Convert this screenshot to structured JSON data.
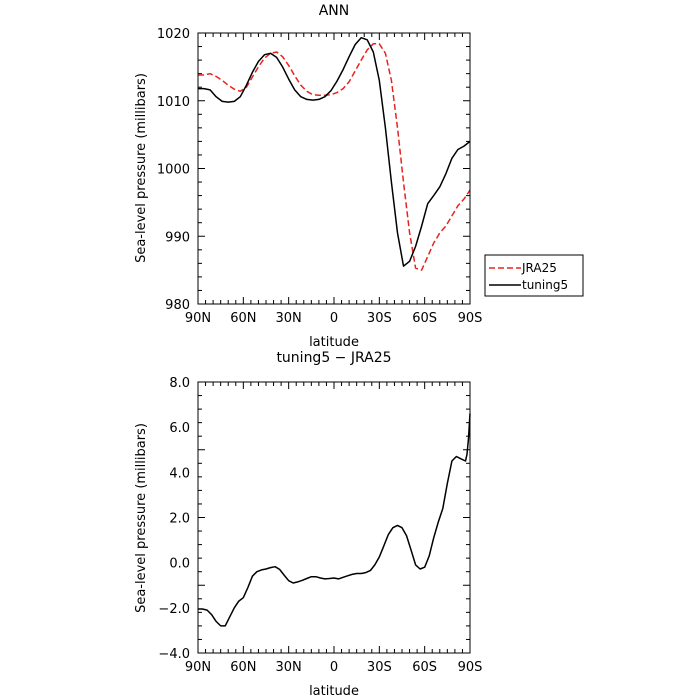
{
  "chart_data": [
    {
      "type": "line",
      "title": "ANN",
      "xlabel": "latitude",
      "ylabel": "Sea-level pressure (millibars)",
      "xlim": [
        90,
        -90
      ],
      "ylim": [
        980,
        1020
      ],
      "x_ticks": [
        90,
        60,
        30,
        0,
        -30,
        -60,
        -90
      ],
      "x_tick_labels": [
        "90N",
        "60N",
        "30N",
        "0",
        "30S",
        "60S",
        "90S"
      ],
      "y_ticks": [
        980,
        990,
        1000,
        1010,
        1020
      ],
      "y_tick_labels": [
        "980",
        "990",
        "1000",
        "1010",
        "1020"
      ],
      "grid": false,
      "legend_position": "outside-right",
      "series": [
        {
          "name": "JRA25",
          "color": "#e8231f",
          "dash": "dashed",
          "x": [
            90,
            86,
            82,
            78,
            74,
            70,
            66,
            62,
            58,
            54,
            50,
            46,
            42,
            38,
            34,
            30,
            26,
            22,
            18,
            14,
            10,
            6,
            2,
            -2,
            -6,
            -10,
            -14,
            -18,
            -22,
            -26,
            -30,
            -34,
            -38,
            -42,
            -46,
            -50,
            -54,
            -58,
            -62,
            -66,
            -70,
            -74,
            -78,
            -82,
            -86,
            -90
          ],
          "values": [
            1013.8,
            1013.8,
            1014.0,
            1013.6,
            1013.0,
            1012.3,
            1011.7,
            1011.4,
            1012.0,
            1013.5,
            1015.0,
            1016.3,
            1017.0,
            1017.2,
            1016.5,
            1015.2,
            1013.7,
            1012.3,
            1011.4,
            1010.9,
            1010.8,
            1010.8,
            1010.9,
            1011.2,
            1011.8,
            1012.8,
            1014.4,
            1016.0,
            1017.5,
            1018.4,
            1018.4,
            1017.0,
            1013.0,
            1006.0,
            998.0,
            990.5,
            985.3,
            985.0,
            987.0,
            989.0,
            990.5,
            991.5,
            993.0,
            994.5,
            995.5,
            996.8
          ]
        },
        {
          "name": "tuning5",
          "color": "#000000",
          "dash": "solid",
          "x": [
            90,
            86,
            82,
            78,
            74,
            70,
            66,
            62,
            58,
            54,
            50,
            46,
            42,
            38,
            34,
            30,
            26,
            22,
            18,
            14,
            10,
            6,
            2,
            -2,
            -6,
            -10,
            -14,
            -18,
            -22,
            -26,
            -30,
            -34,
            -38,
            -42,
            -46,
            -50,
            -54,
            -58,
            -62,
            -66,
            -70,
            -74,
            -78,
            -82,
            -86,
            -90
          ],
          "values": [
            1011.8,
            1011.8,
            1011.6,
            1010.6,
            1009.9,
            1009.8,
            1009.9,
            1010.6,
            1012.3,
            1014.2,
            1015.8,
            1016.8,
            1017.0,
            1016.4,
            1015.0,
            1013.2,
            1011.6,
            1010.6,
            1010.2,
            1010.1,
            1010.2,
            1010.6,
            1011.5,
            1012.9,
            1014.6,
            1016.5,
            1018.3,
            1019.3,
            1019.0,
            1017.2,
            1013.0,
            1006.0,
            998.0,
            990.5,
            985.6,
            986.3,
            988.5,
            991.5,
            994.8,
            996.0,
            997.3,
            999.2,
            1001.5,
            1002.8,
            1003.3,
            1004.0
          ]
        }
      ]
    },
    {
      "type": "line",
      "title": "tuning5 − JRA25",
      "xlabel": "latitude",
      "ylabel": "Sea-level pressure (millibars)",
      "xlim": [
        90,
        -90
      ],
      "ylim": [
        -4.0,
        8.0
      ],
      "x_ticks": [
        90,
        60,
        30,
        0,
        -30,
        -60,
        -90
      ],
      "x_tick_labels": [
        "90N",
        "60N",
        "30N",
        "0",
        "30S",
        "60S",
        "90S"
      ],
      "y_ticks": [
        -4,
        -2,
        0,
        2,
        4,
        6,
        8
      ],
      "y_tick_labels": [
        "−4.0",
        "−2.0",
        "0.0",
        "2.0",
        "4.0",
        "6.0",
        "8.0"
      ],
      "grid": false,
      "series": [
        {
          "color": "#000000",
          "dash": "solid",
          "x": [
            90,
            87,
            84,
            81,
            78,
            75,
            72,
            69,
            66,
            63,
            60,
            57,
            54,
            51,
            48,
            45,
            42,
            39,
            36,
            33,
            30,
            27,
            24,
            21,
            18,
            15,
            12,
            9,
            6,
            3,
            0,
            -3,
            -6,
            -9,
            -12,
            -15,
            -18,
            -21,
            -24,
            -27,
            -30,
            -33,
            -36,
            -39,
            -42,
            -45,
            -48,
            -51,
            -54,
            -57,
            -60,
            -63,
            -66,
            -69,
            -72,
            -75,
            -78,
            -81,
            -84,
            -87,
            -88,
            -89,
            -90
          ],
          "values": [
            -2.05,
            -2.05,
            -2.1,
            -2.3,
            -2.6,
            -2.8,
            -2.8,
            -2.4,
            -2.0,
            -1.7,
            -1.55,
            -1.1,
            -0.6,
            -0.4,
            -0.32,
            -0.28,
            -0.22,
            -0.18,
            -0.3,
            -0.55,
            -0.8,
            -0.9,
            -0.85,
            -0.78,
            -0.7,
            -0.62,
            -0.62,
            -0.68,
            -0.72,
            -0.7,
            -0.68,
            -0.72,
            -0.65,
            -0.58,
            -0.52,
            -0.48,
            -0.48,
            -0.44,
            -0.35,
            -0.1,
            0.25,
            0.75,
            1.25,
            1.55,
            1.65,
            1.55,
            1.2,
            0.55,
            -0.1,
            -0.28,
            -0.2,
            0.3,
            1.1,
            1.8,
            2.4,
            3.5,
            4.5,
            4.7,
            4.6,
            4.5,
            4.8,
            5.5,
            6.6
          ]
        }
      ]
    }
  ]
}
